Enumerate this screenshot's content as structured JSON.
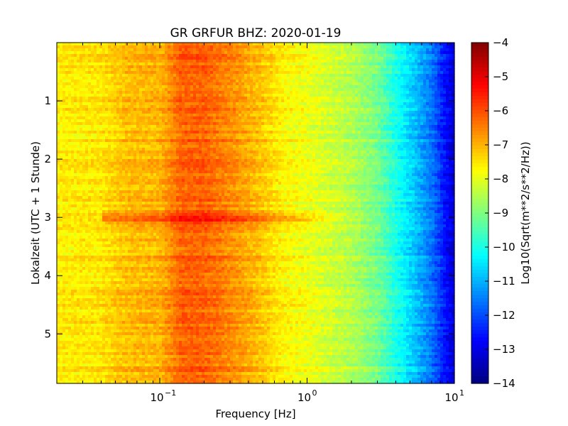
{
  "chart_data": {
    "type": "heatmap",
    "title": "GR GRFUR BHZ: 2020-01-19",
    "xlabel": "Frequency [Hz]",
    "ylabel": "Lokalzeit (UTC + 1 Stunde)",
    "colorbar_label": "Log10(Sqrt(m**2/s**2/Hz))",
    "x_scale": "log",
    "xlim": [
      0.02,
      10
    ],
    "ylim": [
      5.85,
      0
    ],
    "clim": [
      -14,
      -4
    ],
    "colormap": "jet",
    "x_ticks": [
      {
        "value": 0.1,
        "base": "10",
        "exp": "−1"
      },
      {
        "value": 1,
        "base": "10",
        "exp": "0"
      },
      {
        "value": 10,
        "base": "10",
        "exp": "1"
      }
    ],
    "y_ticks": [
      1,
      2,
      3,
      4,
      5
    ],
    "colorbar_ticks": [
      "−4",
      "−5",
      "−6",
      "−7",
      "−8",
      "−9",
      "−10",
      "−11",
      "−12",
      "−13",
      "−14"
    ],
    "colorbar_tick_values": [
      -4,
      -5,
      -6,
      -7,
      -8,
      -9,
      -10,
      -11,
      -12,
      -13,
      -14
    ],
    "spectrum_profile": {
      "frequency_hz": [
        0.02,
        0.04,
        0.06,
        0.1,
        0.12,
        0.14,
        0.2,
        0.3,
        0.5,
        0.7,
        1.0,
        2.0,
        3.0,
        4.0,
        5.0,
        7.0,
        9.0,
        10.0
      ],
      "log10_amplitude": [
        -7.6,
        -7.5,
        -7.1,
        -7.0,
        -6.6,
        -6.2,
        -6.2,
        -6.6,
        -7.2,
        -7.7,
        -7.9,
        -8.5,
        -9.1,
        -10.0,
        -10.6,
        -11.6,
        -12.8,
        -13.2
      ]
    },
    "event": {
      "time_hours": 3.0,
      "peak_increase": 0.8,
      "extends_to_hz": 2.0
    }
  }
}
